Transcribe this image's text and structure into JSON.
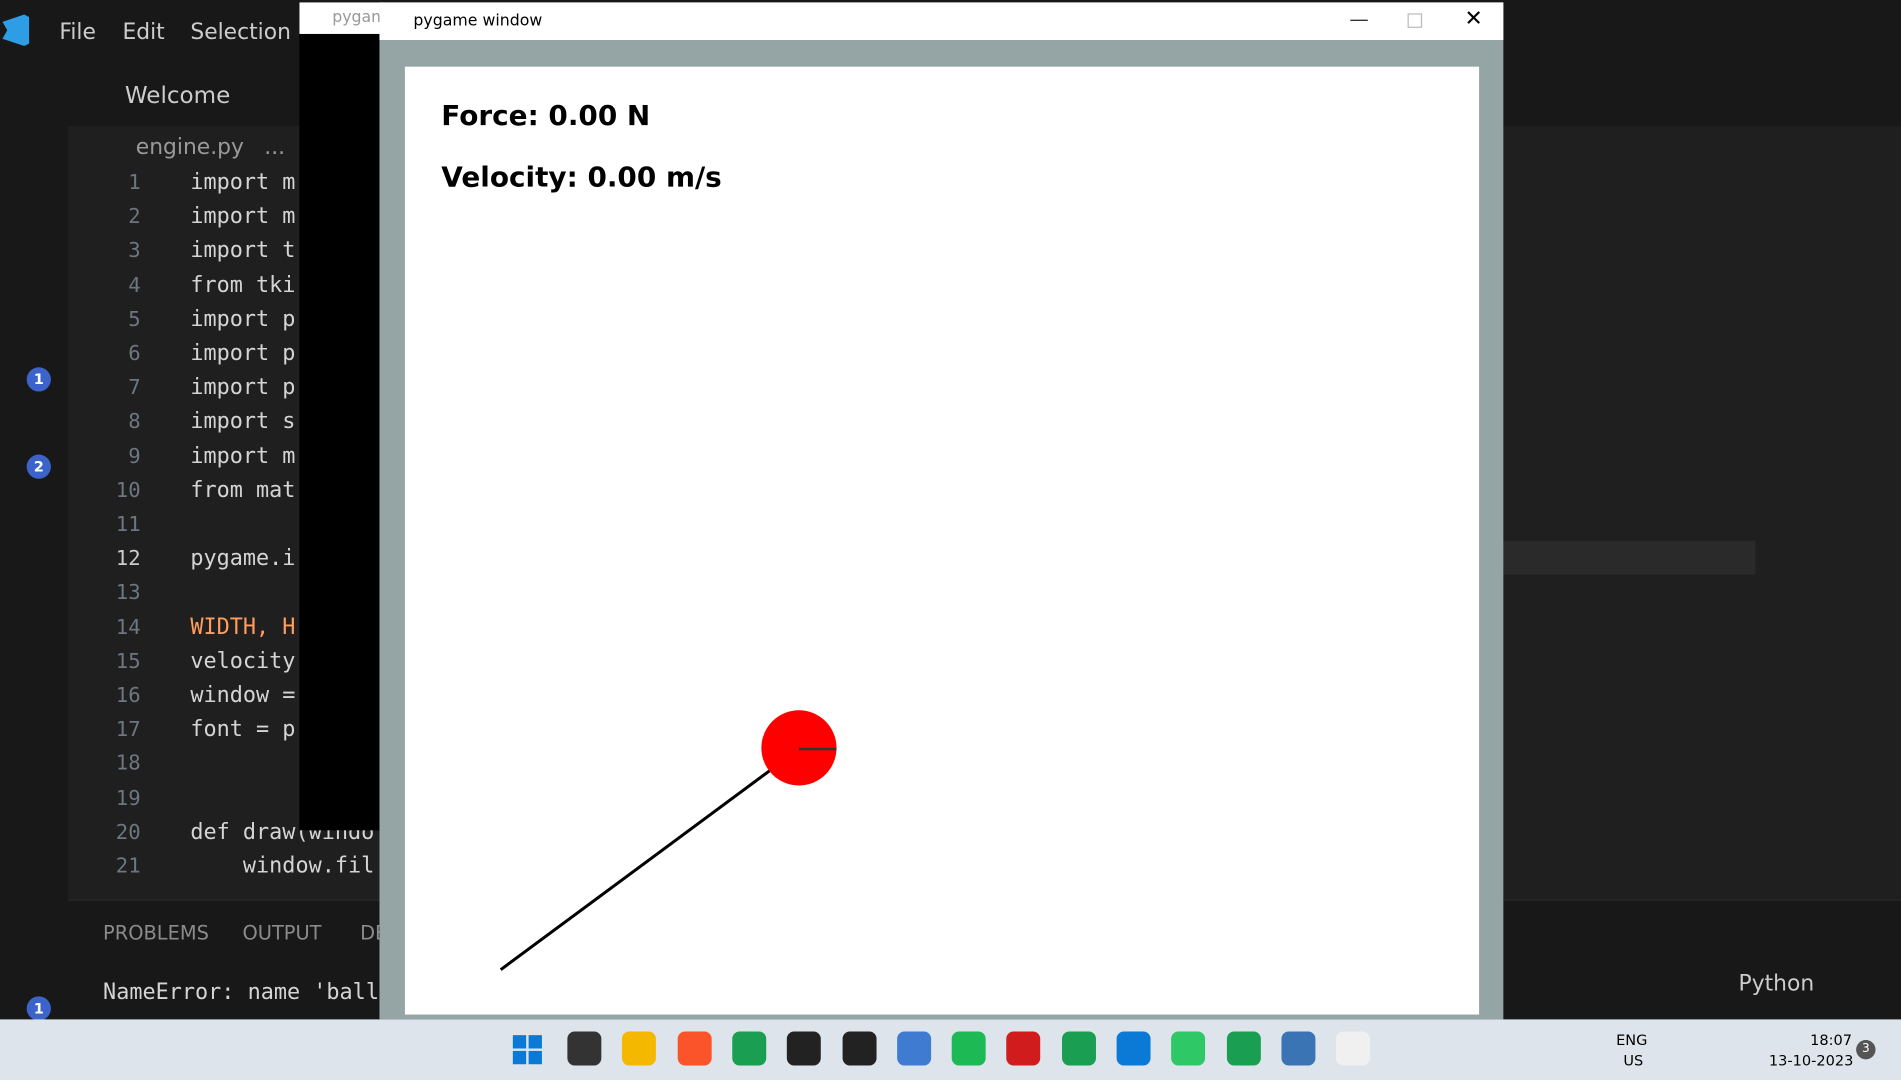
{
  "menu": [
    "File",
    "Edit",
    "Selection"
  ],
  "tab": {
    "title": "Welcome"
  },
  "breadcrumb": {
    "file": "engine.py",
    "rest": "..."
  },
  "editor": {
    "lines": [
      {
        "number": 1,
        "text": "import m"
      },
      {
        "number": 2,
        "text": "import m"
      },
      {
        "number": 3,
        "text": "import t"
      },
      {
        "number": 4,
        "text": "from tki"
      },
      {
        "number": 5,
        "text": "import p"
      },
      {
        "number": 6,
        "text": "import p"
      },
      {
        "number": 7,
        "text": "import p"
      },
      {
        "number": 8,
        "text": "import s"
      },
      {
        "number": 9,
        "text": "import m"
      },
      {
        "number": 10,
        "text": "from mat"
      },
      {
        "number": 11
      },
      {
        "number": 12,
        "text": "pygame.i"
      },
      {
        "number": 13
      },
      {
        "number": 14,
        "text": "WIDTH, H"
      },
      {
        "number": 15,
        "text": "velocity"
      },
      {
        "number": 16,
        "text": "window ="
      },
      {
        "number": 17,
        "text": "font = p"
      },
      {
        "number": 18
      },
      {
        "number": 19
      },
      {
        "number": 20,
        "text": "def draw(windo"
      },
      {
        "number": 21,
        "text": "    window.fil"
      }
    ]
  },
  "badges": {
    "run": "1",
    "extensions": "2",
    "settings": "1"
  },
  "panel": {
    "tabs": [
      "PROBLEMS",
      "OUTPUT",
      "DE"
    ],
    "output": "NameError: name 'ball",
    "terminal": "Python"
  },
  "console_window": {
    "title": "pygam"
  },
  "pygame_window": {
    "title": "pygame window",
    "force": "Force: 0.00 N",
    "velocity": "Velocity: 0.00 m/s"
  },
  "taskbar": {
    "language": "ENG",
    "region": "US",
    "time": "18:07",
    "date": "13-10-2023",
    "notifications": "3"
  }
}
